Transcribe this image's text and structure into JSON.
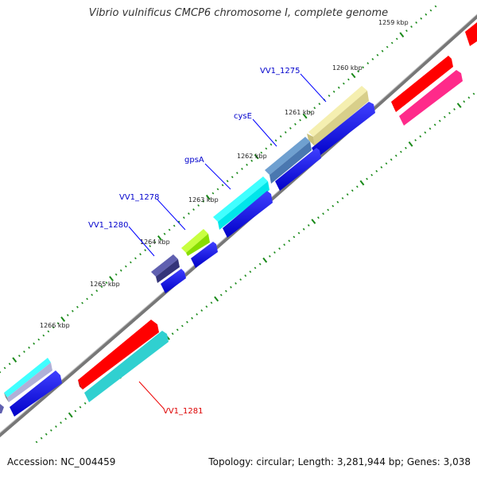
{
  "title": "Vibrio vulnificus CMCP6 chromosome I, complete genome",
  "footer": {
    "accession": "Accession: NC_004459",
    "summary": "Topology: circular; Length: 3,281,944 bp; Genes: 3,038"
  },
  "scale_labels": [
    {
      "text": "1259 kbp",
      "pos": 1259
    },
    {
      "text": "1260 kbp",
      "pos": 1260
    },
    {
      "text": "1261 kbp",
      "pos": 1261
    },
    {
      "text": "1262 kbp",
      "pos": 1262
    },
    {
      "text": "1263 kbp",
      "pos": 1263
    },
    {
      "text": "1264 kbp",
      "pos": 1264
    },
    {
      "text": "1265 kbp",
      "pos": 1265
    },
    {
      "text": "1266 kbp",
      "pos": 1266
    }
  ],
  "gene_labels": [
    {
      "text": "VV1_1275",
      "color": "#0000cc"
    },
    {
      "text": "cysE",
      "color": "#0000cc"
    },
    {
      "text": "gpsA",
      "color": "#0000cc"
    },
    {
      "text": "VV1_1278",
      "color": "#0000cc"
    },
    {
      "text": "VV1_1280",
      "color": "#0000cc"
    },
    {
      "text": "VV1_1281",
      "color": "#dd0000"
    }
  ],
  "colors": {
    "backbone": "#7a7a7a",
    "ticks": "#1a8a1a",
    "label_line_blue": "#0000ff",
    "label_line_red": "#ee0000"
  }
}
